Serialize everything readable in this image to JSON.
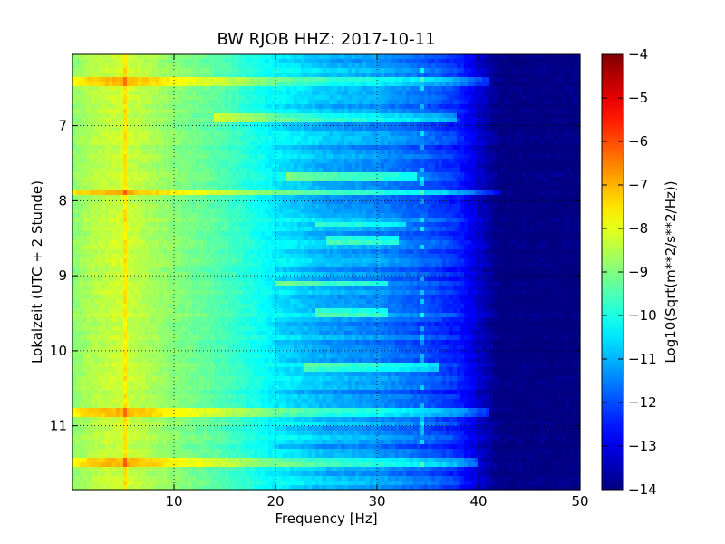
{
  "chart_data": {
    "type": "heatmap",
    "title": "BW RJOB HHZ: 2017-10-11",
    "xlabel": "Frequency [Hz]",
    "ylabel": "Lokalzeit (UTC + 2 Stunde)",
    "xlim": [
      0,
      50
    ],
    "ylim": [
      11.85,
      6.05
    ],
    "y_inverted": true,
    "x_ticks": [
      10,
      20,
      30,
      40,
      50
    ],
    "x_tick_labels": [
      "10",
      "20",
      "30",
      "40",
      "50"
    ],
    "y_ticks": [
      7,
      8,
      9,
      10,
      11
    ],
    "y_tick_labels": [
      "7",
      "8",
      "9",
      "10",
      "11"
    ],
    "grid": true,
    "colorbar": {
      "label": "Log10(Sqrt(m**2/s**2/Hz))",
      "colormap": "jet",
      "range": [
        -14,
        -4
      ],
      "ticks": [
        -4,
        -5,
        -6,
        -7,
        -8,
        -9,
        -10,
        -11,
        -12,
        -13,
        -14
      ],
      "tick_labels": [
        "−4",
        "−5",
        "−6",
        "−7",
        "−8",
        "−9",
        "−10",
        "−11",
        "−12",
        "−13",
        "−14"
      ]
    },
    "spectral_profile": {
      "frequency_hz": [
        0,
        2,
        5,
        10,
        15,
        20,
        25,
        30,
        35,
        38,
        40,
        42,
        50
      ],
      "log_psd": [
        -8.9,
        -8.5,
        -8.2,
        -8.9,
        -9.5,
        -10.4,
        -11.0,
        -11.3,
        -11.9,
        -12.4,
        -13.2,
        -14.0,
        -14.0
      ]
    },
    "persistent_lines_hz": [
      5.2
    ],
    "narrowband_feature_hz": 34.5,
    "noise_bursts": [
      {
        "time": 6.43,
        "f_range_hz": [
          0,
          41
        ]
      },
      {
        "time": 6.88,
        "f_range_hz": [
          14,
          38
        ]
      },
      {
        "time": 7.68,
        "f_range_hz": [
          21,
          34
        ]
      },
      {
        "time": 7.89,
        "f_range_hz": [
          0,
          42
        ]
      },
      {
        "time": 8.32,
        "f_range_hz": [
          24,
          33
        ]
      },
      {
        "time": 8.55,
        "f_range_hz": [
          25,
          32
        ]
      },
      {
        "time": 9.1,
        "f_range_hz": [
          20,
          31
        ]
      },
      {
        "time": 9.48,
        "f_range_hz": [
          24,
          31
        ]
      },
      {
        "time": 10.23,
        "f_range_hz": [
          23,
          36
        ]
      },
      {
        "time": 10.82,
        "f_range_hz": [
          0,
          41
        ]
      },
      {
        "time": 11.47,
        "f_range_hz": [
          0,
          40
        ]
      }
    ],
    "colors": {
      "background": "#ffffff",
      "grid": "#000000"
    }
  }
}
